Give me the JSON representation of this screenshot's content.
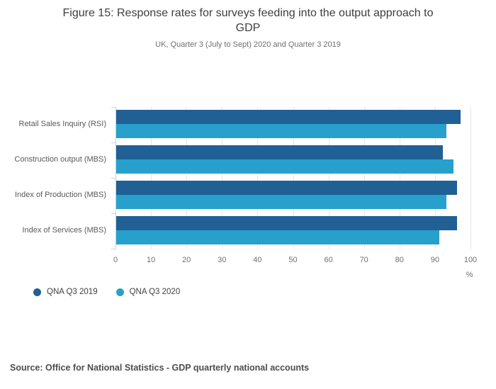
{
  "header": {
    "title_line1": "Figure 15: Response rates for surveys feeding into the output approach to",
    "title_line2": "GDP",
    "subtitle": "UK, Quarter 3 (July to Sept) 2020 and Quarter 3 2019"
  },
  "chart_data": {
    "type": "bar",
    "orientation": "horizontal",
    "title": "Figure 15: Response rates for surveys feeding into the output approach to GDP",
    "subtitle": "UK, Quarter 3 (July to Sept) 2020 and Quarter 3 2019",
    "categories": [
      "Retail Sales Inquiry (RSI)",
      "Construction output (MBS)",
      "Index of Production (MBS)",
      "Index of Services (MBS)"
    ],
    "series": [
      {
        "name": "QNA Q3 2019",
        "color": "#206095",
        "values": [
          97,
          92,
          96,
          96
        ]
      },
      {
        "name": "QNA Q3 2020",
        "color": "#27A0CC",
        "values": [
          93,
          95,
          93,
          91
        ]
      }
    ],
    "x_axis": {
      "ticks": [
        0,
        10,
        20,
        30,
        40,
        50,
        60,
        70,
        80,
        90,
        100
      ],
      "unit_label": "%",
      "range": [
        0,
        100
      ]
    },
    "ylabel": "",
    "xlabel": "%",
    "grid": true,
    "legend_position": "bottom-left"
  },
  "footer": {
    "source": "Source: Office for National Statistics - GDP quarterly national accounts"
  }
}
